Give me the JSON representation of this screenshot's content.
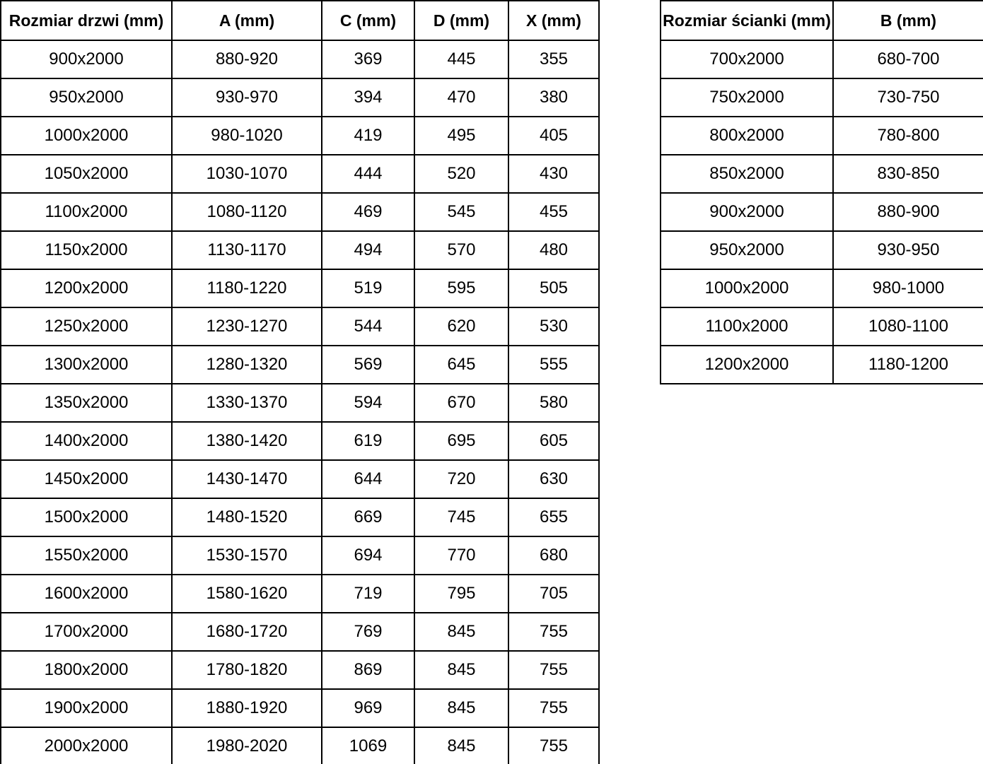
{
  "left_table": {
    "title": "door-dimensions-table",
    "headers": [
      "Rozmiar drzwi (mm)",
      "A (mm)",
      "C (mm)",
      "D (mm)",
      "X (mm)"
    ],
    "rows": [
      [
        "900x2000",
        "880-920",
        "369",
        "445",
        "355"
      ],
      [
        "950x2000",
        "930-970",
        "394",
        "470",
        "380"
      ],
      [
        "1000x2000",
        "980-1020",
        "419",
        "495",
        "405"
      ],
      [
        "1050x2000",
        "1030-1070",
        "444",
        "520",
        "430"
      ],
      [
        "1100x2000",
        "1080-1120",
        "469",
        "545",
        "455"
      ],
      [
        "1150x2000",
        "1130-1170",
        "494",
        "570",
        "480"
      ],
      [
        "1200x2000",
        "1180-1220",
        "519",
        "595",
        "505"
      ],
      [
        "1250x2000",
        "1230-1270",
        "544",
        "620",
        "530"
      ],
      [
        "1300x2000",
        "1280-1320",
        "569",
        "645",
        "555"
      ],
      [
        "1350x2000",
        "1330-1370",
        "594",
        "670",
        "580"
      ],
      [
        "1400x2000",
        "1380-1420",
        "619",
        "695",
        "605"
      ],
      [
        "1450x2000",
        "1430-1470",
        "644",
        "720",
        "630"
      ],
      [
        "1500x2000",
        "1480-1520",
        "669",
        "745",
        "655"
      ],
      [
        "1550x2000",
        "1530-1570",
        "694",
        "770",
        "680"
      ],
      [
        "1600x2000",
        "1580-1620",
        "719",
        "795",
        "705"
      ],
      [
        "1700x2000",
        "1680-1720",
        "769",
        "845",
        "755"
      ],
      [
        "1800x2000",
        "1780-1820",
        "869",
        "845",
        "755"
      ],
      [
        "1900x2000",
        "1880-1920",
        "969",
        "845",
        "755"
      ],
      [
        "2000x2000",
        "1980-2020",
        "1069",
        "845",
        "755"
      ]
    ]
  },
  "right_table": {
    "title": "wall-dimensions-table",
    "headers": [
      "Rozmiar ścianki (mm)",
      "B (mm)"
    ],
    "rows": [
      [
        "700x2000",
        "680-700"
      ],
      [
        "750x2000",
        "730-750"
      ],
      [
        "800x2000",
        "780-800"
      ],
      [
        "850x2000",
        "830-850"
      ],
      [
        "900x2000",
        "880-900"
      ],
      [
        "950x2000",
        "930-950"
      ],
      [
        "1000x2000",
        "980-1000"
      ],
      [
        "1100x2000",
        "1080-1100"
      ],
      [
        "1200x2000",
        "1180-1200"
      ]
    ]
  },
  "colors": {
    "border": "#000000",
    "text": "#000000",
    "background": "#ffffff"
  }
}
